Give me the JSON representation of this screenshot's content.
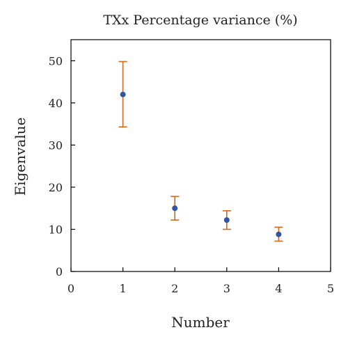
{
  "chart_data": {
    "type": "scatter",
    "title": "TXx Percentage variance (%)",
    "xlabel": "Number",
    "ylabel": "Eigenvalue",
    "xlim": [
      0,
      5
    ],
    "ylim": [
      0,
      55
    ],
    "xticks": [
      0,
      1,
      2,
      3,
      4,
      5
    ],
    "yticks": [
      0,
      10,
      20,
      30,
      40,
      50
    ],
    "grid": false,
    "series": [
      {
        "points": [
          {
            "x": 1,
            "y": 42.0,
            "err_low": 34.3,
            "err_high": 49.8
          },
          {
            "x": 2,
            "y": 15.0,
            "err_low": 12.2,
            "err_high": 17.8
          },
          {
            "x": 3,
            "y": 12.2,
            "err_low": 10.0,
            "err_high": 14.4
          },
          {
            "x": 4,
            "y": 8.8,
            "err_low": 7.2,
            "err_high": 10.5
          }
        ]
      }
    ],
    "colors": {
      "marker": "#2f55a4",
      "errorbar": "#d2691e",
      "axis": "#000000"
    }
  }
}
